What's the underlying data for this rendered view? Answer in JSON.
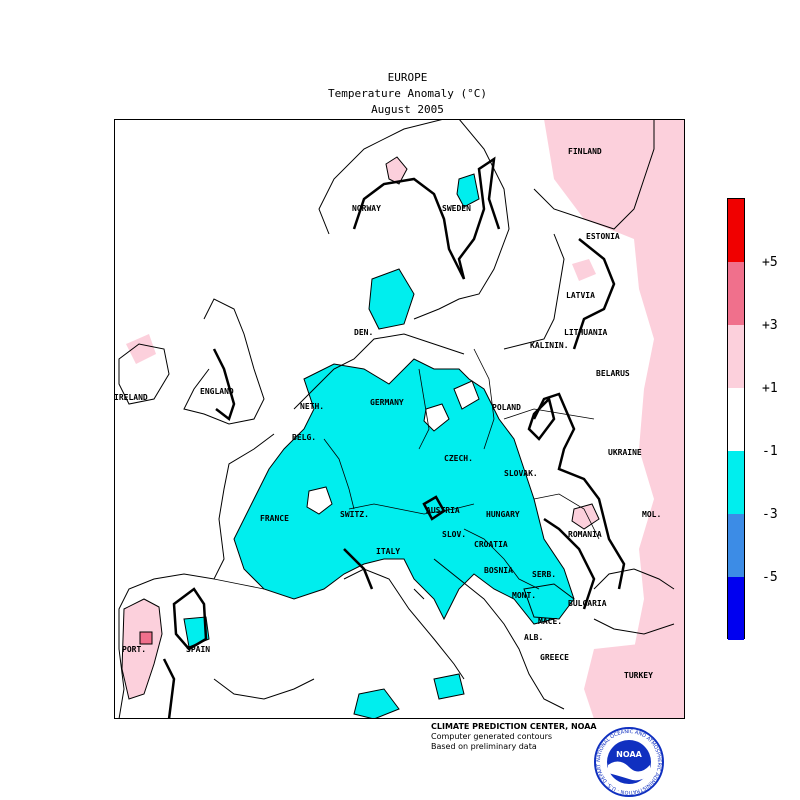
{
  "header": {
    "region": "EUROPE",
    "variable": "Temperature Anomaly (°C)",
    "period": "August 2005"
  },
  "legend": {
    "colors": [
      "#f00000",
      "#f0708c",
      "#fcd0dc",
      "#ffffff",
      "#00eeee",
      "#3c8ce6",
      "#0000f0"
    ],
    "ticks": [
      "+5",
      "+3",
      "+1",
      "-1",
      "-3",
      "-5"
    ]
  },
  "country_labels": [
    "FINLAND",
    "NORWAY",
    "SWEDEN",
    "ESTONIA",
    "LATVIA",
    "LITHUANIA",
    "KALININ.",
    "BELARUS",
    "DEN.",
    "IRELAND",
    "ENGLAND",
    "NETH.",
    "GERMANY",
    "POLAND",
    "BELG.",
    "CZECH.",
    "SLOVAK.",
    "UKRAINE",
    "FRANCE",
    "SWITZ.",
    "AUSTRIA",
    "HUNGARY",
    "MOL.",
    "ROMANIA",
    "SLOV.",
    "CROATIA",
    "ITALY",
    "BOSNIA",
    "SERB.",
    "MONT.",
    "BULGARIA",
    "MACE.",
    "ALB.",
    "GREECE",
    "TURKEY",
    "PORT.",
    "SPAIN"
  ],
  "credits": {
    "center": "CLIMATE PREDICTION CENTER, NOAA",
    "method": "Computer generated contours",
    "basis": "Based on preliminary data"
  },
  "logo": {
    "text": "NOAA",
    "ring_text": "NATIONAL OCEANIC AND ATMOSPHERIC ADMINISTRATION · U.S. DEPARTMENT OF COMMERCE ·"
  }
}
